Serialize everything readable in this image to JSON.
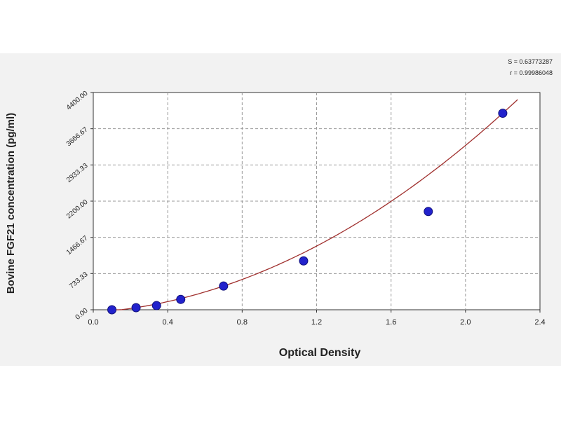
{
  "chart_data": {
    "type": "scatter",
    "title": "",
    "xlabel": "Optical Density",
    "ylabel": "Bovine FGF21 concentration (pg/ml)",
    "xlim": [
      0.0,
      2.4
    ],
    "ylim": [
      0,
      4400
    ],
    "x_ticks": [
      "0.0",
      "0.4",
      "0.8",
      "1.2",
      "1.6",
      "2.0",
      "2.4"
    ],
    "y_ticks": [
      "0.00",
      "733.33",
      "1466.67",
      "2200.00",
      "2933.33",
      "3666.67",
      "4400.00"
    ],
    "grid": true,
    "series": [
      {
        "values_x": [
          0.1,
          0.23,
          0.34,
          0.47,
          0.7,
          1.13,
          1.8,
          2.2
        ],
        "values_y": [
          0,
          43,
          85,
          210,
          480,
          990,
          1990,
          3980
        ],
        "style": "points",
        "color": "#2222cc"
      }
    ],
    "fit_curve": {
      "color": "#a0302e",
      "x_range": [
        0.1,
        2.28
      ]
    },
    "annotations": [
      "S = 0.63773287",
      "r = 0.99986048"
    ]
  }
}
